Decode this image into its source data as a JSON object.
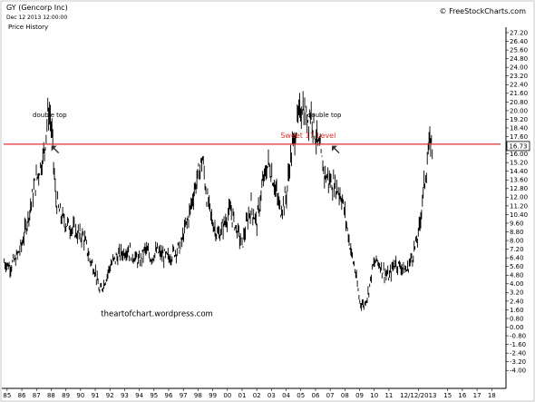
{
  "header": {
    "title": "GY (Gencorp Inc)",
    "date": "Dec 12 2013 12:00:00",
    "subtitle": "Price History",
    "source": "© FreeStockCharts.com"
  },
  "chart_data": {
    "type": "line",
    "style": "ohlc-bars",
    "color": "#000000",
    "grid": false,
    "y_axis_side": "right",
    "ylim": [
      -4.4,
      27.2
    ],
    "y_ticks": [
      "27.20",
      "26.40",
      "25.60",
      "24.80",
      "24.00",
      "23.20",
      "22.40",
      "21.60",
      "20.80",
      "20.00",
      "19.20",
      "18.40",
      "17.60",
      "16.80",
      "16.00",
      "15.20",
      "14.40",
      "13.60",
      "12.80",
      "12.00",
      "11.20",
      "10.40",
      "9.60",
      "8.80",
      "8.00",
      "7.20",
      "6.40",
      "5.60",
      "4.80",
      "4.00",
      "3.20",
      "2.40",
      "1.60",
      "0.80",
      "0.00",
      "-0.80",
      "-1.60",
      "-2.40",
      "-3.20",
      "-4.00"
    ],
    "x_ticks": [
      "85",
      "86",
      "87",
      "88",
      "89",
      "90",
      "91",
      "92",
      "93",
      "94",
      "95",
      "96",
      "97",
      "98",
      "99",
      "00",
      "01",
      "02",
      "03",
      "04",
      "05",
      "06",
      "07",
      "08",
      "09",
      "10",
      "11",
      "12/12/2013",
      "15",
      "16",
      "17",
      "18"
    ],
    "x_tick_years": [
      1985,
      1986,
      1987,
      1988,
      1989,
      1990,
      1991,
      1992,
      1993,
      1994,
      1995,
      1996,
      1997,
      1998,
      1999,
      2000,
      2001,
      2002,
      2003,
      2004,
      2005,
      2006,
      2007,
      2008,
      2009,
      2010,
      2011,
      2013,
      2015,
      2016,
      2017,
      2018
    ],
    "xlim": [
      1984.7,
      2018.6
    ],
    "last_price": "16.73",
    "last_price_value": 16.73,
    "reference_line": {
      "label": "Sweet 17 Level",
      "value": 16.9,
      "color": "#e03030"
    },
    "annotations": [
      {
        "text": "double top",
        "x": 1987.9,
        "y": 19.4
      },
      {
        "text": "double top",
        "x": 2006.6,
        "y": 19.4
      },
      {
        "text": "theartofchart.wordpress.com",
        "x": 1995.2,
        "y": 1.0
      }
    ],
    "arrows": [
      {
        "x": 1988.2,
        "y": 16.5,
        "direction": "up-left"
      },
      {
        "x": 2007.3,
        "y": 16.5,
        "direction": "up-left"
      }
    ],
    "series": [
      {
        "x": [
          1984.8,
          1985.2,
          1985.6,
          1986.0,
          1986.3,
          1986.6,
          1986.9,
          1987.2,
          1987.5,
          1987.8,
          1987.95,
          1988.1,
          1988.3,
          1988.6,
          1989.0,
          1989.4,
          1989.8,
          1990.2,
          1990.6,
          1991.0,
          1991.3,
          1991.7,
          1992.0,
          1992.4,
          1992.8,
          1993.2,
          1993.6,
          1994.0,
          1994.4,
          1994.8,
          1995.2,
          1995.6,
          1996.0,
          1996.4,
          1996.8,
          1997.1,
          1997.4,
          1997.7,
          1998.0,
          1998.3,
          1998.6,
          1999.0,
          1999.4,
          1999.8,
          2000.2,
          2000.6,
          2001.0,
          2001.3,
          2001.6,
          2002.0,
          2002.4,
          2002.8,
          2003.2,
          2003.6,
          2004.0,
          2004.3,
          2004.6,
          2004.9,
          2005.1,
          2005.4,
          2005.7,
          2006.0,
          2006.3,
          2006.6,
          2006.9,
          2007.2,
          2007.5,
          2007.8,
          2008.1,
          2008.4,
          2008.7,
          2009.0,
          2009.3,
          2009.6,
          2009.9,
          2010.2,
          2010.6,
          2011.0,
          2011.4,
          2011.8,
          2012.2,
          2012.6,
          2013.0,
          2013.3,
          2013.6,
          2013.8,
          2013.95
        ],
        "y": [
          6.0,
          5.6,
          6.3,
          7.6,
          9.4,
          11.2,
          13.2,
          14.6,
          16.0,
          20.0,
          19.3,
          16.8,
          12.0,
          10.4,
          9.6,
          9.2,
          8.6,
          8.4,
          6.4,
          5.2,
          3.2,
          4.4,
          5.6,
          6.4,
          6.8,
          7.2,
          6.6,
          6.0,
          7.2,
          6.4,
          7.0,
          6.6,
          6.4,
          7.0,
          7.4,
          9.0,
          10.4,
          12.4,
          14.0,
          15.6,
          12.0,
          9.6,
          8.4,
          9.6,
          10.8,
          9.2,
          7.6,
          9.4,
          11.2,
          9.6,
          13.2,
          15.2,
          13.2,
          10.8,
          12.0,
          15.6,
          17.8,
          19.6,
          20.6,
          19.2,
          19.8,
          17.8,
          16.2,
          14.2,
          13.6,
          13.2,
          12.8,
          12.0,
          9.6,
          7.2,
          5.2,
          2.4,
          2.0,
          3.2,
          5.6,
          6.2,
          5.2,
          4.6,
          6.0,
          5.6,
          5.2,
          6.6,
          8.4,
          12.0,
          15.2,
          17.2,
          16.7
        ]
      }
    ]
  }
}
